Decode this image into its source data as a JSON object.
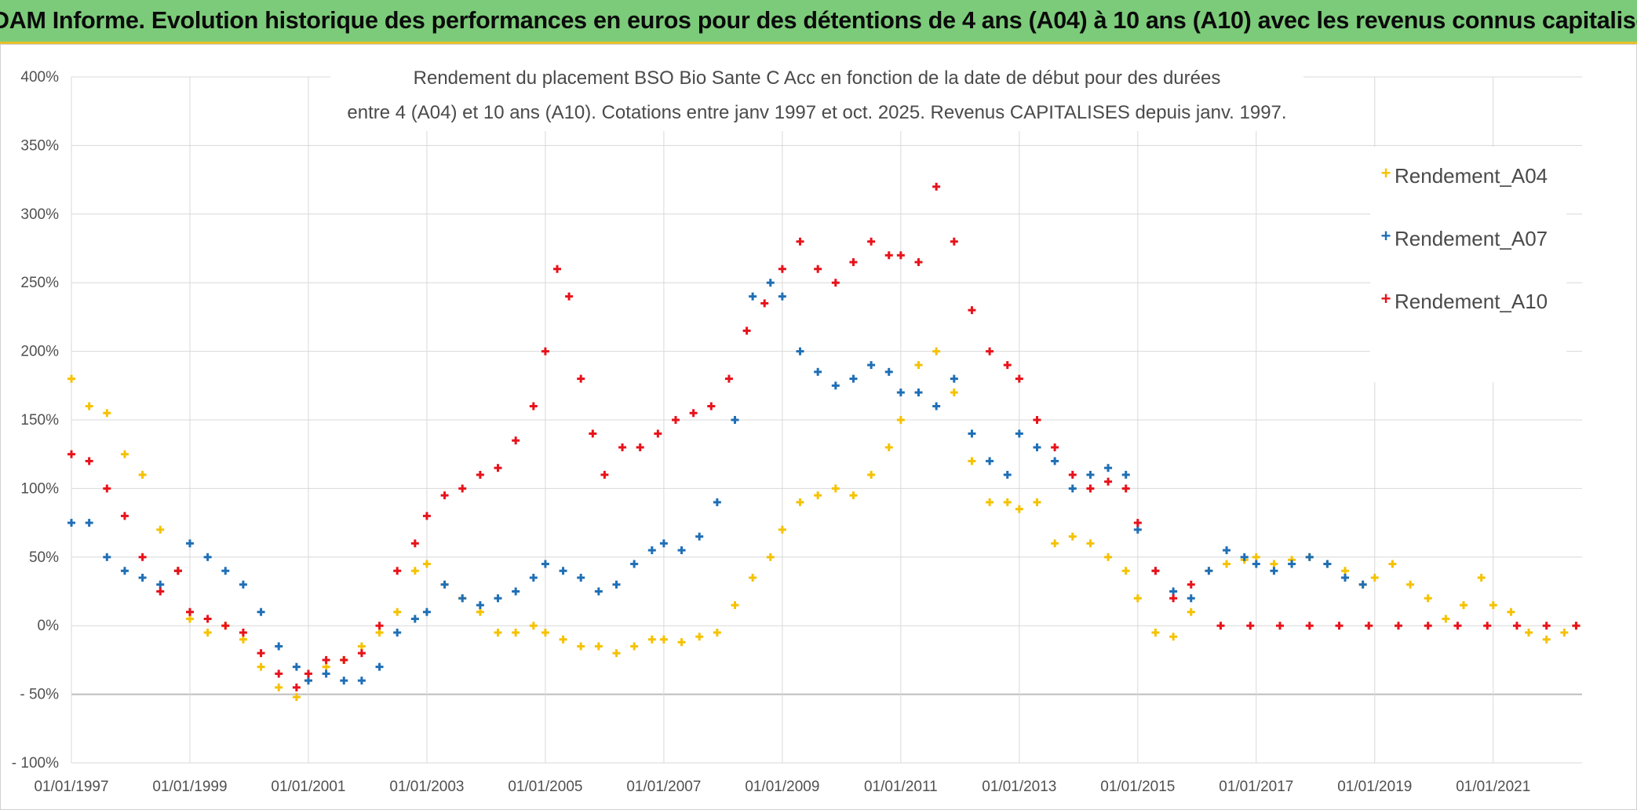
{
  "banner": {
    "title": "ADAM Informe. Evolution historique des performances en euros pour des détentions de 4 ans (A04) à 10 ans (A10) avec les revenus connus capitalisés"
  },
  "colors": {
    "banner_bg": "#7ccb7a",
    "A04": "#f5c200",
    "A07": "#1f6fb5",
    "A10": "#e8121a"
  },
  "chart_data": {
    "type": "scatter",
    "title_lines": [
      "Rendement du placement BSO Bio Sante C Acc en fonction de la date de début pour des durées",
      "entre 4 (A04) et 10 ans (A10). Cotations entre janv 1997 et oct. 2025. Revenus CAPITALISES depuis janv. 1997."
    ],
    "xlabel": "",
    "ylabel": "",
    "x_range": [
      1997.0,
      2022.5
    ],
    "ylim": [
      -100,
      400
    ],
    "y_ticks": [
      400,
      350,
      300,
      250,
      200,
      150,
      100,
      50,
      0,
      -50,
      -100
    ],
    "y_tick_labels": [
      "400%",
      "350%",
      "300%",
      "250%",
      "200%",
      "150%",
      "100%",
      "50%",
      "0%",
      "- 50%",
      "- 100%"
    ],
    "x_ticks": [
      1997,
      1999,
      2001,
      2003,
      2005,
      2007,
      2009,
      2011,
      2013,
      2015,
      2017,
      2019,
      2021
    ],
    "x_tick_labels": [
      "01/01/1997",
      "01/01/1999",
      "01/01/2001",
      "01/01/2003",
      "01/01/2005",
      "01/01/2007",
      "01/01/2009",
      "01/01/2011",
      "01/01/2013",
      "01/01/2015",
      "01/01/2017",
      "01/01/2019",
      "01/01/2021"
    ],
    "grid": true,
    "legend_position": "top-right",
    "series": [
      {
        "name": "Rendement_A04",
        "x": [
          1997.0,
          1997.3,
          1997.6,
          1997.9,
          1998.2,
          1998.5,
          1998.8,
          1999.0,
          1999.3,
          1999.6,
          1999.9,
          2000.2,
          2000.5,
          2000.8,
          2001.0,
          2001.3,
          2001.6,
          2001.9,
          2002.2,
          2002.5,
          2002.8,
          2003.0,
          2003.3,
          2003.6,
          2003.9,
          2004.2,
          2004.5,
          2004.8,
          2005.0,
          2005.3,
          2005.6,
          2005.9,
          2006.2,
          2006.5,
          2006.8,
          2007.0,
          2007.3,
          2007.6,
          2007.9,
          2008.2,
          2008.5,
          2008.8,
          2009.0,
          2009.3,
          2009.6,
          2009.9,
          2010.2,
          2010.5,
          2010.8,
          2011.0,
          2011.3,
          2011.6,
          2011.9,
          2012.2,
          2012.5,
          2012.8,
          2013.0,
          2013.3,
          2013.6,
          2013.9,
          2014.2,
          2014.5,
          2014.8,
          2015.0,
          2015.3,
          2015.6,
          2015.9,
          2016.2,
          2016.5,
          2016.8,
          2017.0,
          2017.3,
          2017.6,
          2017.9,
          2018.2,
          2018.5,
          2018.8,
          2019.0,
          2019.3,
          2019.6,
          2019.9,
          2020.2,
          2020.5,
          2020.8,
          2021.0,
          2021.3,
          2021.6,
          2021.9,
          2022.2,
          2022.4
        ],
        "y": [
          180,
          160,
          155,
          125,
          110,
          70,
          40,
          5,
          -5,
          0,
          -10,
          -30,
          -45,
          -52,
          -40,
          -30,
          -25,
          -15,
          -5,
          10,
          40,
          45,
          30,
          20,
          10,
          -5,
          -5,
          0,
          -5,
          -10,
          -15,
          -15,
          -20,
          -15,
          -10,
          -10,
          -12,
          -8,
          -5,
          15,
          35,
          50,
          70,
          90,
          95,
          100,
          95,
          110,
          130,
          150,
          190,
          200,
          170,
          120,
          90,
          90,
          85,
          90,
          60,
          65,
          60,
          50,
          40,
          20,
          -5,
          -8,
          10,
          40,
          45,
          48,
          50,
          45,
          48,
          50,
          45,
          40,
          30,
          35,
          45,
          30,
          20,
          5,
          15,
          35,
          15,
          10,
          -5,
          -10,
          -5,
          0
        ]
      },
      {
        "name": "Rendement_A07",
        "x": [
          1997.0,
          1997.3,
          1997.6,
          1997.9,
          1998.2,
          1998.5,
          1998.8,
          1999.0,
          1999.3,
          1999.6,
          1999.9,
          2000.2,
          2000.5,
          2000.8,
          2001.0,
          2001.3,
          2001.6,
          2001.9,
          2002.2,
          2002.5,
          2002.8,
          2003.0,
          2003.3,
          2003.6,
          2003.9,
          2004.2,
          2004.5,
          2004.8,
          2005.0,
          2005.3,
          2005.6,
          2005.9,
          2006.2,
          2006.5,
          2006.8,
          2007.0,
          2007.3,
          2007.6,
          2007.9,
          2008.2,
          2008.5,
          2008.8,
          2009.0,
          2009.3,
          2009.6,
          2009.9,
          2010.2,
          2010.5,
          2010.8,
          2011.0,
          2011.3,
          2011.6,
          2011.9,
          2012.2,
          2012.5,
          2012.8,
          2013.0,
          2013.3,
          2013.6,
          2013.9,
          2014.2,
          2014.5,
          2014.8,
          2015.0,
          2015.3,
          2015.6,
          2015.9,
          2016.2,
          2016.5,
          2016.8,
          2017.0,
          2017.3,
          2017.6,
          2017.9,
          2018.2,
          2018.5,
          2018.8
        ],
        "y": [
          75,
          75,
          50,
          40,
          35,
          30,
          40,
          60,
          50,
          40,
          30,
          10,
          -15,
          -30,
          -40,
          -35,
          -40,
          -40,
          -30,
          -5,
          5,
          10,
          30,
          20,
          15,
          20,
          25,
          35,
          45,
          40,
          35,
          25,
          30,
          45,
          55,
          60,
          55,
          65,
          90,
          150,
          240,
          250,
          240,
          200,
          185,
          175,
          180,
          190,
          185,
          170,
          170,
          160,
          180,
          140,
          120,
          110,
          140,
          130,
          120,
          100,
          110,
          115,
          110,
          70,
          40,
          25,
          20,
          40,
          55,
          50,
          45,
          40,
          45,
          50,
          45,
          35,
          30
        ]
      },
      {
        "name": "Rendement_A10",
        "x": [
          1997.0,
          1997.3,
          1997.6,
          1997.9,
          1998.2,
          1998.5,
          1998.8,
          1999.0,
          1999.3,
          1999.6,
          1999.9,
          2000.2,
          2000.5,
          2000.8,
          2001.0,
          2001.3,
          2001.6,
          2001.9,
          2002.2,
          2002.5,
          2002.8,
          2003.0,
          2003.3,
          2003.6,
          2003.9,
          2004.2,
          2004.5,
          2004.8,
          2005.0,
          2005.2,
          2005.4,
          2005.6,
          2005.8,
          2006.0,
          2006.3,
          2006.6,
          2006.9,
          2007.2,
          2007.5,
          2007.8,
          2008.1,
          2008.4,
          2008.7,
          2009.0,
          2009.3,
          2009.6,
          2009.9,
          2010.2,
          2010.5,
          2010.8,
          2011.0,
          2011.3,
          2011.6,
          2011.9,
          2012.2,
          2012.5,
          2012.8,
          2013.0,
          2013.3,
          2013.6,
          2013.9,
          2014.2,
          2014.5,
          2014.8,
          2015.0,
          2015.3,
          2015.6,
          2015.9,
          2016.4,
          2016.9,
          2017.4,
          2017.9,
          2018.4,
          2018.9,
          2019.4,
          2019.9,
          2020.4,
          2020.9,
          2021.4,
          2021.9,
          2022.4
        ],
        "y": [
          125,
          120,
          100,
          80,
          50,
          25,
          40,
          10,
          5,
          0,
          -5,
          -20,
          -35,
          -45,
          -35,
          -25,
          -25,
          -20,
          0,
          40,
          60,
          80,
          95,
          100,
          110,
          115,
          135,
          160,
          200,
          260,
          240,
          180,
          140,
          110,
          130,
          130,
          140,
          150,
          155,
          160,
          180,
          215,
          235,
          260,
          280,
          260,
          250,
          265,
          280,
          270,
          270,
          265,
          320,
          280,
          230,
          200,
          190,
          180,
          150,
          130,
          110,
          100,
          105,
          100,
          75,
          40,
          20,
          30,
          0,
          0,
          0,
          0,
          0,
          0,
          0,
          0,
          0,
          0,
          0,
          0,
          0
        ]
      }
    ]
  }
}
